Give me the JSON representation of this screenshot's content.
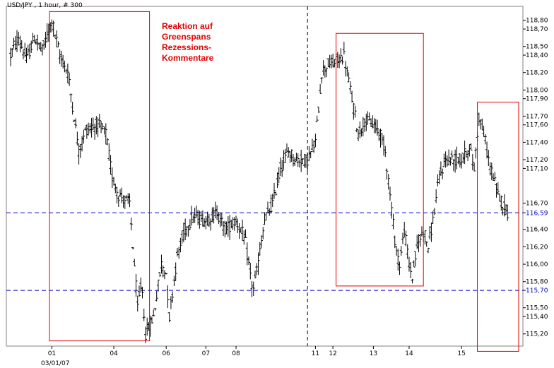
{
  "chart_data": {
    "type": "ohlc",
    "title": "USD/JPY , 1 hour, # 300",
    "y_ticks": [
      115.2,
      115.4,
      115.5,
      115.7,
      115.8,
      116.0,
      116.2,
      116.4,
      116.59,
      116.7,
      117.1,
      117.2,
      117.4,
      117.6,
      117.7,
      117.9,
      118.0,
      118.2,
      118.4,
      118.5,
      118.7,
      118.8
    ],
    "y_tick_labels": [
      "115,20",
      "115,40",
      "115,50",
      "115,70",
      "115,80",
      "116,00",
      "116,20",
      "116,40",
      "116,59",
      "116,70",
      "117,10",
      "117,20",
      "117,40",
      "117,60",
      "117,70",
      "117,90",
      "118,00",
      "118,20",
      "118,40",
      "118,50",
      "118,70",
      "118,80"
    ],
    "x_tick_labels": [
      {
        "label": "01",
        "bar": 52
      },
      {
        "label": "04",
        "bar": 130
      },
      {
        "label": "06",
        "bar": 196
      },
      {
        "label": "07",
        "bar": 246
      },
      {
        "label": "08",
        "bar": 284
      },
      {
        "label": "11",
        "bar": 384
      },
      {
        "label": "12",
        "bar": 406
      },
      {
        "label": "13",
        "bar": 457
      },
      {
        "label": "14",
        "bar": 502
      },
      {
        "label": "15",
        "bar": 568
      }
    ],
    "x_date_label": "03/01/07",
    "ylim": [
      115.06,
      118.96
    ],
    "reference_lines": [
      {
        "value": 116.59,
        "label": "116,59",
        "color": "#0000cc"
      },
      {
        "value": 115.7,
        "label": "115,70",
        "color": "#0000cc"
      }
    ],
    "session_divider_bar": 374,
    "annotation": [
      "Reaktion auf",
      "Greenspans",
      "Rezessions-",
      "Kommentare"
    ],
    "highlight_boxes": [
      {
        "from_bar": 49,
        "to_bar": 175,
        "high": 118.9,
        "low": 115.12
      },
      {
        "from_bar": 410,
        "to_bar": 520,
        "high": 118.65,
        "low": 115.75
      },
      {
        "from_bar": 588,
        "to_bar": 640,
        "high": 117.86,
        "low": 115.0
      }
    ],
    "colors": {
      "bars": "#000000",
      "boxes": "#e00000",
      "annotation": "#e00000",
      "reference": "#0000cc"
    },
    "anchors": [
      [
        0,
        118.4
      ],
      [
        10,
        118.6
      ],
      [
        20,
        118.35
      ],
      [
        30,
        118.6
      ],
      [
        40,
        118.45
      ],
      [
        52,
        118.8
      ],
      [
        62,
        118.4
      ],
      [
        72,
        118.2
      ],
      [
        80,
        117.7
      ],
      [
        86,
        117.3
      ],
      [
        95,
        117.55
      ],
      [
        110,
        117.6
      ],
      [
        120,
        117.5
      ],
      [
        128,
        117.0
      ],
      [
        136,
        116.8
      ],
      [
        150,
        116.7
      ],
      [
        160,
        115.5
      ],
      [
        165,
        115.8
      ],
      [
        170,
        115.2
      ],
      [
        180,
        115.4
      ],
      [
        190,
        116.0
      ],
      [
        196,
        115.9
      ],
      [
        200,
        115.4
      ],
      [
        210,
        116.1
      ],
      [
        220,
        116.4
      ],
      [
        230,
        116.55
      ],
      [
        246,
        116.5
      ],
      [
        260,
        116.6
      ],
      [
        270,
        116.4
      ],
      [
        284,
        116.5
      ],
      [
        295,
        116.3
      ],
      [
        300,
        116.0
      ],
      [
        305,
        115.7
      ],
      [
        310,
        115.9
      ],
      [
        320,
        116.5
      ],
      [
        330,
        116.7
      ],
      [
        340,
        117.1
      ],
      [
        350,
        117.3
      ],
      [
        360,
        117.2
      ],
      [
        374,
        117.2
      ],
      [
        384,
        117.4
      ],
      [
        392,
        118.2
      ],
      [
        400,
        118.3
      ],
      [
        406,
        118.3
      ],
      [
        420,
        118.4
      ],
      [
        430,
        117.9
      ],
      [
        438,
        117.5
      ],
      [
        446,
        117.65
      ],
      [
        457,
        117.6
      ],
      [
        466,
        117.5
      ],
      [
        472,
        117.3
      ],
      [
        478,
        116.8
      ],
      [
        485,
        116.2
      ],
      [
        490,
        116.0
      ],
      [
        496,
        116.4
      ],
      [
        502,
        116.0
      ],
      [
        506,
        115.85
      ],
      [
        512,
        116.2
      ],
      [
        520,
        116.4
      ],
      [
        526,
        116.2
      ],
      [
        532,
        116.5
      ],
      [
        540,
        117.0
      ],
      [
        548,
        117.2
      ],
      [
        558,
        117.2
      ],
      [
        568,
        117.2
      ],
      [
        578,
        117.35
      ],
      [
        584,
        117.1
      ],
      [
        590,
        117.7
      ],
      [
        596,
        117.5
      ],
      [
        602,
        117.2
      ],
      [
        608,
        117.0
      ],
      [
        614,
        116.8
      ],
      [
        620,
        116.7
      ],
      [
        626,
        116.6
      ]
    ]
  }
}
